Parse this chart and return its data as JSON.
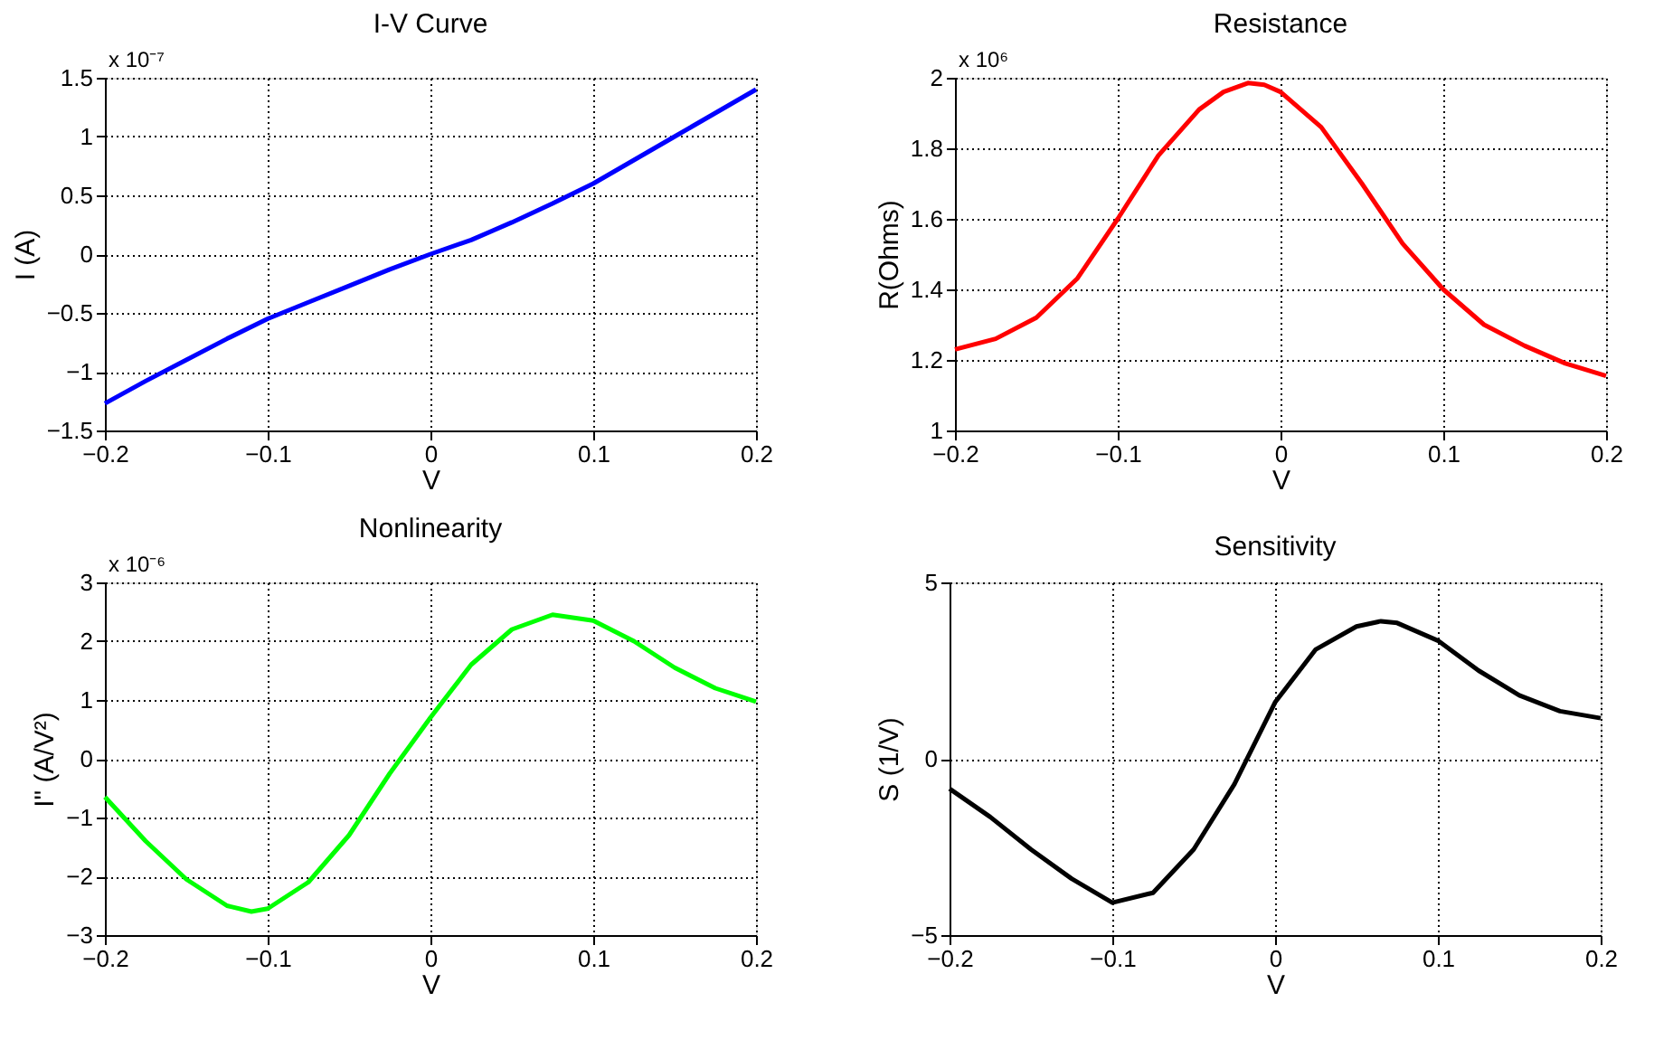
{
  "chart_data": [
    {
      "type": "line",
      "title": "I-V Curve",
      "xlabel": "V",
      "ylabel": "I (A)",
      "annotations": [
        "x 10⁻⁷"
      ],
      "xlim": [
        -0.2,
        0.2
      ],
      "xticks": [
        -0.2,
        -0.1,
        0,
        0.1,
        0.2
      ],
      "ylim": [
        -1.5,
        1.5
      ],
      "yticks": [
        -1.5,
        -1,
        -0.5,
        0,
        0.5,
        1,
        1.5
      ],
      "grid": true,
      "series": [
        {
          "color": "#0000ff",
          "x": [
            -0.2,
            -0.175,
            -0.15,
            -0.125,
            -0.1,
            -0.075,
            -0.05,
            -0.025,
            0,
            0.025,
            0.05,
            0.075,
            0.1,
            0.125,
            0.15,
            0.175,
            0.2
          ],
          "values": [
            -1.27,
            -1.08,
            -0.9,
            -0.72,
            -0.55,
            -0.41,
            -0.27,
            -0.13,
            0,
            0.12,
            0.27,
            0.43,
            0.6,
            0.8,
            1.0,
            1.2,
            1.4
          ]
        }
      ]
    },
    {
      "type": "line",
      "title": "Resistance",
      "xlabel": "V",
      "ylabel": "R(Ohms)",
      "annotations": [
        "x 10⁶"
      ],
      "xlim": [
        -0.2,
        0.2
      ],
      "xticks": [
        -0.2,
        -0.1,
        0,
        0.1,
        0.2
      ],
      "ylim": [
        1,
        2
      ],
      "yticks": [
        1,
        1.2,
        1.4,
        1.6,
        1.8,
        2
      ],
      "grid": true,
      "series": [
        {
          "color": "#ff0000",
          "x": [
            -0.2,
            -0.175,
            -0.15,
            -0.125,
            -0.1,
            -0.075,
            -0.05,
            -0.035,
            -0.02,
            -0.01,
            0,
            0.025,
            0.05,
            0.075,
            0.1,
            0.125,
            0.15,
            0.175,
            0.2
          ],
          "values": [
            1.23,
            1.26,
            1.32,
            1.43,
            1.6,
            1.78,
            1.91,
            1.96,
            1.985,
            1.98,
            1.96,
            1.86,
            1.7,
            1.53,
            1.4,
            1.3,
            1.24,
            1.19,
            1.155
          ]
        }
      ]
    },
    {
      "type": "line",
      "title": "Nonlinearity",
      "xlabel": "V",
      "ylabel": "I\" (A/V²)",
      "annotations": [
        "x 10⁻⁶"
      ],
      "xlim": [
        -0.2,
        0.2
      ],
      "xticks": [
        -0.2,
        -0.1,
        0,
        0.1,
        0.2
      ],
      "ylim": [
        -3,
        3
      ],
      "yticks": [
        -3,
        -2,
        -1,
        0,
        1,
        2,
        3
      ],
      "grid": true,
      "series": [
        {
          "color": "#00ff00",
          "x": [
            -0.2,
            -0.175,
            -0.15,
            -0.125,
            -0.11,
            -0.1,
            -0.075,
            -0.05,
            -0.025,
            0,
            0.025,
            0.05,
            0.075,
            0.1,
            0.125,
            0.15,
            0.175,
            0.2
          ],
          "values": [
            -0.65,
            -1.4,
            -2.05,
            -2.5,
            -2.6,
            -2.55,
            -2.1,
            -1.3,
            -0.25,
            0.7,
            1.6,
            2.2,
            2.45,
            2.35,
            2.0,
            1.55,
            1.2,
            0.97
          ]
        }
      ]
    },
    {
      "type": "line",
      "title": "Sensitivity",
      "xlabel": "V",
      "ylabel": "S (1/V)",
      "xlim": [
        -0.2,
        0.2
      ],
      "xticks": [
        -0.2,
        -0.1,
        0,
        0.1,
        0.2
      ],
      "ylim": [
        -5,
        5
      ],
      "yticks": [
        -5,
        0,
        5
      ],
      "grid": true,
      "series": [
        {
          "color": "#000000",
          "x": [
            -0.2,
            -0.175,
            -0.15,
            -0.125,
            -0.1,
            -0.075,
            -0.05,
            -0.025,
            0,
            0.025,
            0.05,
            0.065,
            0.075,
            0.1,
            0.125,
            0.15,
            0.175,
            0.2
          ],
          "values": [
            -0.85,
            -1.65,
            -2.57,
            -3.4,
            -4.08,
            -3.8,
            -2.57,
            -0.72,
            1.6,
            3.1,
            3.75,
            3.9,
            3.85,
            3.35,
            2.5,
            1.8,
            1.35,
            1.15
          ]
        }
      ]
    }
  ]
}
